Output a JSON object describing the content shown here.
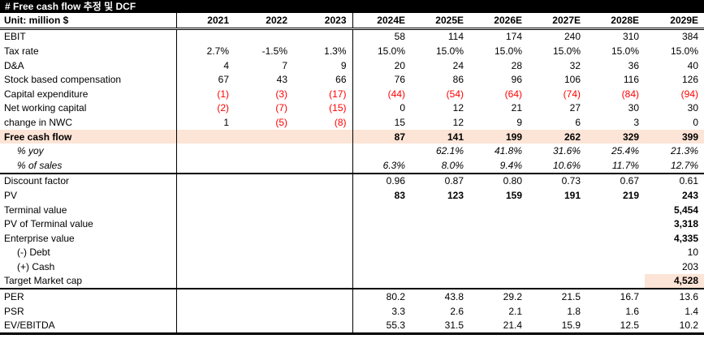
{
  "title": "# Free cash flow 추정 및 DCF",
  "unit_label": "Unit: million $",
  "colors": {
    "title_bg": "#000000",
    "title_fg": "#ffffff",
    "highlight": "#fce4d6",
    "negative": "#ff0000"
  },
  "columns": [
    "2021",
    "2022",
    "2023",
    "2024E",
    "2025E",
    "2026E",
    "2027E",
    "2028E",
    "2029E"
  ],
  "chart_data": {
    "type": "table",
    "title": "# Free cash flow 추정 및 DCF",
    "unit": "million $",
    "categories": [
      "2021",
      "2022",
      "2023",
      "2024E",
      "2025E",
      "2026E",
      "2027E",
      "2028E",
      "2029E"
    ],
    "series": [
      {
        "name": "EBIT",
        "values": [
          null,
          null,
          null,
          58,
          114,
          174,
          240,
          310,
          384
        ]
      },
      {
        "name": "Tax rate",
        "values": [
          "2.7%",
          "-1.5%",
          "1.3%",
          "15.0%",
          "15.0%",
          "15.0%",
          "15.0%",
          "15.0%",
          "15.0%"
        ]
      },
      {
        "name": "D&A",
        "values": [
          4,
          7,
          9,
          20,
          24,
          28,
          32,
          36,
          40
        ]
      },
      {
        "name": "Stock based compensation",
        "values": [
          67,
          43,
          66,
          76,
          86,
          96,
          106,
          116,
          126
        ]
      },
      {
        "name": "Capital expenditure",
        "values": [
          -1,
          -3,
          -17,
          -44,
          -54,
          -64,
          -74,
          -84,
          -94
        ]
      },
      {
        "name": "Net working capital",
        "values": [
          -2,
          -7,
          -15,
          0,
          12,
          21,
          27,
          30,
          30
        ]
      },
      {
        "name": "change in NWC",
        "values": [
          1,
          -5,
          -8,
          15,
          12,
          9,
          6,
          3,
          0
        ]
      },
      {
        "name": "Free cash flow",
        "values": [
          null,
          null,
          null,
          87,
          141,
          199,
          262,
          329,
          399
        ]
      },
      {
        "name": "% yoy",
        "values": [
          null,
          null,
          null,
          null,
          "62.1%",
          "41.8%",
          "31.6%",
          "25.4%",
          "21.3%"
        ]
      },
      {
        "name": "% of sales",
        "values": [
          null,
          null,
          null,
          "6.3%",
          "8.0%",
          "9.4%",
          "10.6%",
          "11.7%",
          "12.7%"
        ]
      },
      {
        "name": "Discount factor",
        "values": [
          null,
          null,
          null,
          0.96,
          0.87,
          0.8,
          0.73,
          0.67,
          0.61
        ]
      },
      {
        "name": "PV",
        "values": [
          null,
          null,
          null,
          83,
          123,
          159,
          191,
          219,
          243
        ]
      },
      {
        "name": "Terminal value",
        "values": [
          null,
          null,
          null,
          null,
          null,
          null,
          null,
          null,
          5454
        ]
      },
      {
        "name": "PV of Terminal value",
        "values": [
          null,
          null,
          null,
          null,
          null,
          null,
          null,
          null,
          3318
        ]
      },
      {
        "name": "Enterprise value",
        "values": [
          null,
          null,
          null,
          null,
          null,
          null,
          null,
          null,
          4335
        ]
      },
      {
        "name": "(-) Debt",
        "values": [
          null,
          null,
          null,
          null,
          null,
          null,
          null,
          null,
          10
        ]
      },
      {
        "name": "(+) Cash",
        "values": [
          null,
          null,
          null,
          null,
          null,
          null,
          null,
          null,
          203
        ]
      },
      {
        "name": "Target Market cap",
        "values": [
          null,
          null,
          null,
          null,
          null,
          null,
          null,
          null,
          4528
        ]
      },
      {
        "name": "PER",
        "values": [
          null,
          null,
          null,
          80.2,
          43.8,
          29.2,
          21.5,
          16.7,
          13.6
        ]
      },
      {
        "name": "PSR",
        "values": [
          null,
          null,
          null,
          3.3,
          2.6,
          2.1,
          1.8,
          1.6,
          1.4
        ]
      },
      {
        "name": "EV/EBITDA",
        "values": [
          null,
          null,
          null,
          55.3,
          31.5,
          21.4,
          15.9,
          12.5,
          10.2
        ]
      }
    ]
  },
  "rows": [
    {
      "label": "EBIT",
      "cells": [
        "",
        "",
        "",
        "58",
        "114",
        "174",
        "240",
        "310",
        "384"
      ],
      "style": []
    },
    {
      "label": "Tax rate",
      "cells": [
        "2.7%",
        "-1.5%",
        "1.3%",
        "15.0%",
        "15.0%",
        "15.0%",
        "15.0%",
        "15.0%",
        "15.0%"
      ],
      "style": []
    },
    {
      "label": "D&A",
      "cells": [
        "4",
        "7",
        "9",
        "20",
        "24",
        "28",
        "32",
        "36",
        "40"
      ],
      "style": []
    },
    {
      "label": "Stock based compensation",
      "cells": [
        "67",
        "43",
        "66",
        "76",
        "86",
        "96",
        "106",
        "116",
        "126"
      ],
      "style": []
    },
    {
      "label": "Capital expenditure",
      "cells": [
        "(1)",
        "(3)",
        "(17)",
        "(44)",
        "(54)",
        "(64)",
        "(74)",
        "(84)",
        "(94)"
      ],
      "style": []
    },
    {
      "label": "Net working capital",
      "cells": [
        "(2)",
        "(7)",
        "(15)",
        "0",
        "12",
        "21",
        "27",
        "30",
        "30"
      ],
      "style": []
    },
    {
      "label": "change in NWC",
      "cells": [
        "1",
        "(5)",
        "(8)",
        "15",
        "12",
        "9",
        "6",
        "3",
        "0"
      ],
      "style": []
    },
    {
      "label": "Free cash flow",
      "cells": [
        "",
        "",
        "",
        "87",
        "141",
        "199",
        "262",
        "329",
        "399"
      ],
      "style": [
        "bold_label",
        "bold_values",
        "highlight_row"
      ]
    },
    {
      "label": "% yoy",
      "cells": [
        "",
        "",
        "",
        "",
        "62.1%",
        "41.8%",
        "31.6%",
        "25.4%",
        "21.3%"
      ],
      "style": [
        "italic",
        "indent"
      ]
    },
    {
      "label": "% of sales",
      "cells": [
        "",
        "",
        "",
        "6.3%",
        "8.0%",
        "9.4%",
        "10.6%",
        "11.7%",
        "12.7%"
      ],
      "style": [
        "italic",
        "indent",
        "thick_below"
      ]
    },
    {
      "label": "Discount factor",
      "cells": [
        "",
        "",
        "",
        "0.96",
        "0.87",
        "0.80",
        "0.73",
        "0.67",
        "0.61"
      ],
      "style": []
    },
    {
      "label": "PV",
      "cells": [
        "",
        "",
        "",
        "83",
        "123",
        "159",
        "191",
        "219",
        "243"
      ],
      "style": [
        "bold_values"
      ]
    },
    {
      "label": "Terminal value",
      "cells": [
        "",
        "",
        "",
        "",
        "",
        "",
        "",
        "",
        "5,454"
      ],
      "style": [
        "bold_values"
      ]
    },
    {
      "label": "PV of Terminal value",
      "cells": [
        "",
        "",
        "",
        "",
        "",
        "",
        "",
        "",
        "3,318"
      ],
      "style": [
        "bold_values"
      ]
    },
    {
      "label": "Enterprise value",
      "cells": [
        "",
        "",
        "",
        "",
        "",
        "",
        "",
        "",
        "4,335"
      ],
      "style": [
        "bold_values"
      ]
    },
    {
      "label": "(-) Debt",
      "cells": [
        "",
        "",
        "",
        "",
        "",
        "",
        "",
        "",
        "10"
      ],
      "style": [
        "indent"
      ]
    },
    {
      "label": "(+) Cash",
      "cells": [
        "",
        "",
        "",
        "",
        "",
        "",
        "",
        "",
        "203"
      ],
      "style": [
        "indent"
      ]
    },
    {
      "label": "Target Market cap",
      "cells": [
        "",
        "",
        "",
        "",
        "",
        "",
        "",
        "",
        "4,528"
      ],
      "style": [
        "bold_values",
        "highlight_last",
        "thick_below"
      ]
    },
    {
      "label": "PER",
      "cells": [
        "",
        "",
        "",
        "80.2",
        "43.8",
        "29.2",
        "21.5",
        "16.7",
        "13.6"
      ],
      "style": []
    },
    {
      "label": "PSR",
      "cells": [
        "",
        "",
        "",
        "3.3",
        "2.6",
        "2.1",
        "1.8",
        "1.6",
        "1.4"
      ],
      "style": []
    },
    {
      "label": "EV/EBITDA",
      "cells": [
        "",
        "",
        "",
        "55.3",
        "31.5",
        "21.4",
        "15.9",
        "12.5",
        "10.2"
      ],
      "style": [
        "last"
      ]
    }
  ]
}
